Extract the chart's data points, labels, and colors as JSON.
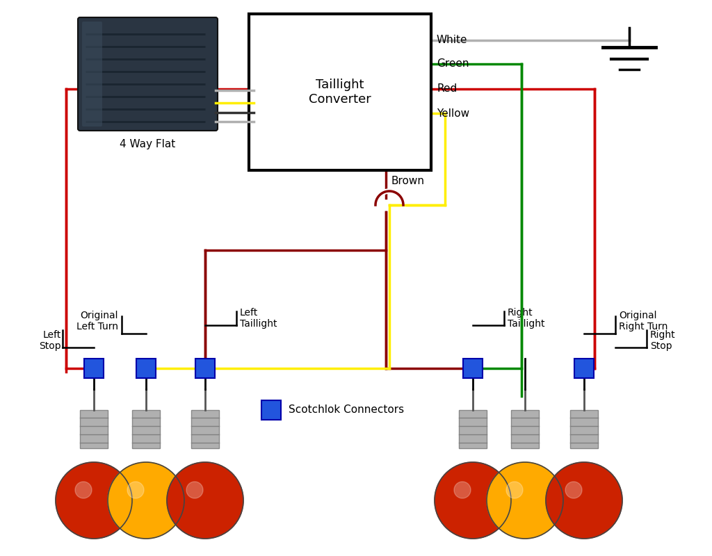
{
  "bg_color": "#ffffff",
  "wire_colors": {
    "white": "#b0b0b0",
    "green": "#008800",
    "red": "#cc0000",
    "yellow": "#ffee00",
    "brown": "#8B0000"
  },
  "converter_text": "Taillight\nConverter",
  "four_way_label": "4 Way Flat",
  "left_turn_label": "Original\nLeft Turn",
  "right_turn_label": "Original\nRight Turn",
  "left_taillight_label": "Left\nTaillight",
  "right_taillight_label": "Right\nTaillight",
  "left_stop_label": "Left\nStop",
  "right_stop_label": "Right\nStop",
  "scotchlok_label": "Scotchlok Connectors",
  "wire_labels": [
    "White",
    "Green",
    "Red",
    "Yellow"
  ],
  "brown_label": "Brown",
  "lw_wire": 2.5
}
